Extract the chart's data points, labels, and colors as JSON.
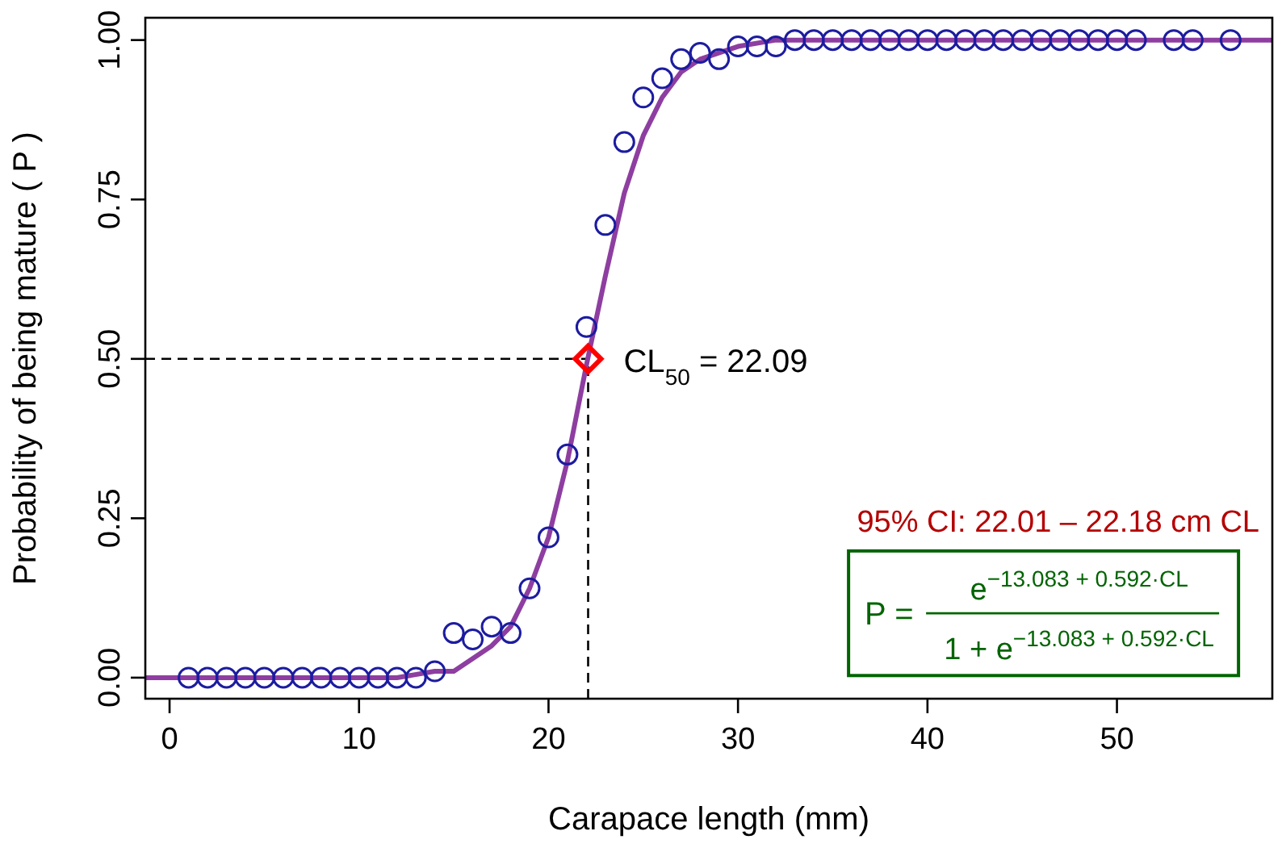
{
  "chart_data": {
    "type": "scatter",
    "xlabel": "Carapace length (mm)",
    "ylabel": "Probability of being mature ( P )",
    "xlim": [
      -1.28,
      58.2
    ],
    "ylim": [
      -0.033,
      1.035
    ],
    "xticks": [
      0,
      10,
      20,
      30,
      40,
      50
    ],
    "yticks": [
      {
        "value": 0,
        "label": "0.00"
      },
      {
        "value": 0.25,
        "label": "0.25"
      },
      {
        "value": 0.5,
        "label": "0.50"
      },
      {
        "value": 0.75,
        "label": "0.75"
      },
      {
        "value": 1,
        "label": "1.00"
      }
    ],
    "grid": false,
    "series": [
      {
        "type": "line",
        "color": "#8e3ea0",
        "marker": "none",
        "line_style": "solid",
        "x": [
          -1.28,
          5,
          10,
          12,
          14,
          15,
          16,
          17,
          18,
          19,
          20,
          21,
          22,
          23,
          24,
          25,
          26,
          27,
          28,
          30,
          32,
          35,
          40,
          58.2
        ],
        "values": [
          0,
          0,
          0,
          0,
          0.01,
          0.01,
          0.03,
          0.05,
          0.08,
          0.14,
          0.22,
          0.34,
          0.49,
          0.63,
          0.76,
          0.85,
          0.91,
          0.95,
          0.97,
          0.99,
          1,
          1,
          1,
          1
        ]
      },
      {
        "color": "#1c1ca0",
        "marker": "circle",
        "x": [
          1,
          2,
          3,
          4,
          5,
          6,
          7,
          8,
          9,
          10,
          11,
          12,
          13,
          14,
          15,
          16,
          17,
          18,
          19,
          20,
          21,
          22,
          23,
          24,
          25,
          26,
          27,
          28,
          29,
          30,
          31,
          32,
          33,
          34,
          35,
          36,
          37,
          38,
          39,
          40,
          41,
          42,
          43,
          44,
          45,
          46,
          47,
          48,
          49,
          50,
          51,
          53,
          54,
          56
        ],
        "values": [
          0,
          0,
          0,
          0,
          0,
          0,
          0,
          0,
          0,
          0,
          0,
          0,
          0,
          0.01,
          0.07,
          0.06,
          0.08,
          0.07,
          0.14,
          0.22,
          0.35,
          0.55,
          0.71,
          0.84,
          0.91,
          0.94,
          0.97,
          0.98,
          0.97,
          0.99,
          0.99,
          0.99,
          1,
          1,
          1,
          1,
          1,
          1,
          1,
          1,
          1,
          1,
          1,
          1,
          1,
          1,
          1,
          1,
          1,
          1,
          1,
          1,
          1,
          1
        ]
      },
      {
        "type": "scatter",
        "color": "#ff0000",
        "marker": "diamond",
        "x": [
          22.09
        ],
        "values": [
          0.5
        ]
      }
    ],
    "ref_lines": [
      {
        "axis": "y",
        "value": 0.5,
        "line_style": "dashed",
        "color": "#000000"
      },
      {
        "axis": "x",
        "value": 22.09,
        "line_style": "dashed",
        "color": "#000000"
      }
    ],
    "annotations": [
      {
        "text": "CL$_{50}$ = 22.09",
        "x": 22.09,
        "y": 0.5
      },
      "95% CI: 22.01 – 22.18 cm CL",
      "P =",
      "e$^{−13.083 + 0.592·CL}$",
      "1 + e$^{−13.083 + 0.592·CL}$"
    ]
  }
}
